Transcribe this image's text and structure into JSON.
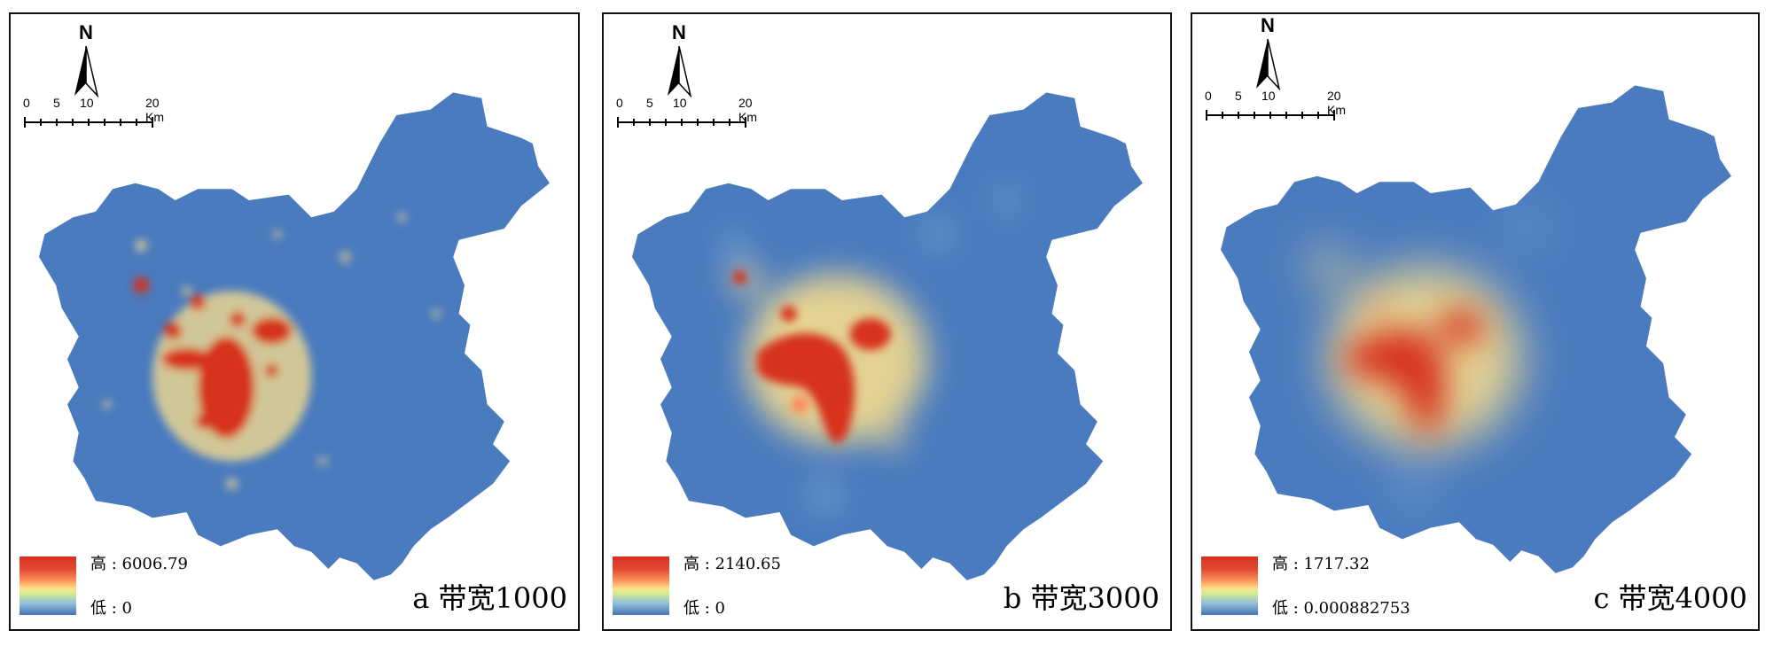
{
  "panels": [
    {
      "id": "a",
      "title": "a 带宽1000",
      "north_label": "N",
      "scale": {
        "ticks": [
          "0",
          "5",
          "10",
          "20 Km"
        ]
      },
      "legend": {
        "high": "高 : 6006.79",
        "low": "低 : 0"
      }
    },
    {
      "id": "b",
      "title": "b 带宽3000",
      "north_label": "N",
      "scale": {
        "ticks": [
          "0",
          "5",
          "10",
          "20 Km"
        ]
      },
      "legend": {
        "high": "高 : 2140.65",
        "low": "低 : 0"
      }
    },
    {
      "id": "c",
      "title": "c 带宽4000",
      "north_label": "N",
      "scale": {
        "ticks": [
          "0",
          "5",
          "10",
          "20 Km"
        ]
      },
      "legend": {
        "high": "高 : 1717.32",
        "low": "低 : 0.000882753"
      }
    }
  ],
  "colors": {
    "low": "#4575b4",
    "mid": "#fee08b",
    "high": "#d7301f"
  }
}
